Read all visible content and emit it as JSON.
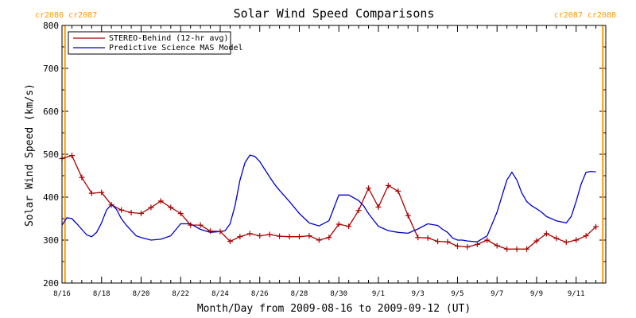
{
  "chart_data": {
    "type": "line",
    "title": "Solar Wind Speed Comparisons",
    "xlabel": "Month/Day from 2009-08-16 to 2009-09-12 (UT)",
    "ylabel": "Solar Wind Speed (km/s)",
    "ylim": [
      200,
      800
    ],
    "yticks": [
      200,
      300,
      400,
      500,
      600,
      700,
      800
    ],
    "xlim_days": [
      0,
      27.5
    ],
    "x_unit": "days from 2009-08-16",
    "xticks": [
      {
        "day": 0,
        "label": "8/16"
      },
      {
        "day": 2,
        "label": "8/18"
      },
      {
        "day": 4,
        "label": "8/20"
      },
      {
        "day": 6,
        "label": "8/22"
      },
      {
        "day": 8,
        "label": "8/24"
      },
      {
        "day": 10,
        "label": "8/26"
      },
      {
        "day": 12,
        "label": "8/28"
      },
      {
        "day": 14,
        "label": "8/30"
      },
      {
        "day": 16,
        "label": "9/1"
      },
      {
        "day": 18,
        "label": "9/3"
      },
      {
        "day": 20,
        "label": "9/5"
      },
      {
        "day": 22,
        "label": "9/7"
      },
      {
        "day": 24,
        "label": "9/9"
      },
      {
        "day": 26,
        "label": "9/11"
      }
    ],
    "legend": {
      "placement": "top-left"
    },
    "carrington_markers": [
      {
        "day": 0.15,
        "label": "cr2086 cr2087",
        "anchor": "left",
        "color": "#ff9900"
      },
      {
        "day": 27.35,
        "label": "cr2087 cr2088",
        "anchor": "right",
        "color": "#ff9900"
      }
    ],
    "series": [
      {
        "name": "STEREO-Behind (12-hr avg)",
        "color": "#aa0000",
        "marker": "plus",
        "x": [
          0.0,
          0.5,
          1.0,
          1.5,
          2.0,
          2.5,
          3.0,
          3.5,
          4.0,
          4.5,
          5.0,
          5.5,
          6.0,
          6.5,
          7.0,
          7.5,
          8.0,
          8.5,
          9.0,
          9.5,
          10.0,
          10.5,
          11.0,
          11.5,
          12.0,
          12.5,
          13.0,
          13.5,
          14.0,
          14.5,
          15.0,
          15.5,
          16.0,
          16.5,
          17.0,
          17.5,
          18.0,
          18.5,
          19.0,
          19.5,
          20.0,
          20.5,
          21.0,
          21.5,
          22.0,
          22.5,
          23.0,
          23.5,
          24.0,
          24.5,
          25.0,
          25.5,
          26.0,
          26.5,
          27.0
        ],
        "values": [
          490,
          497,
          446,
          409,
          411,
          382,
          370,
          364,
          362,
          376,
          391,
          376,
          362,
          335,
          335,
          321,
          320,
          297,
          308,
          315,
          310,
          313,
          309,
          308,
          308,
          310,
          300,
          306,
          337,
          332,
          369,
          421,
          377,
          427,
          414,
          357,
          306,
          305,
          297,
          296,
          286,
          284,
          290,
          300,
          287,
          279,
          279,
          279,
          298,
          315,
          304,
          295,
          300,
          310,
          331
        ]
      },
      {
        "name": "Predictive Science MAS Model",
        "color": "#0000cc",
        "marker": "none",
        "x": [
          0.0,
          0.25,
          0.5,
          0.75,
          1.0,
          1.25,
          1.5,
          1.75,
          2.0,
          2.25,
          2.5,
          2.75,
          3.0,
          3.25,
          3.5,
          3.75,
          4.0,
          4.5,
          5.0,
          5.5,
          6.0,
          6.5,
          7.0,
          7.5,
          8.0,
          8.25,
          8.5,
          8.75,
          9.0,
          9.25,
          9.5,
          9.75,
          10.0,
          10.25,
          10.5,
          10.75,
          11.0,
          11.5,
          12.0,
          12.5,
          13.0,
          13.5,
          14.0,
          14.5,
          15.0,
          15.25,
          15.5,
          15.75,
          16.0,
          16.5,
          17.0,
          17.5,
          18.0,
          18.5,
          19.0,
          19.25,
          19.5,
          19.75,
          20.0,
          20.25,
          20.5,
          21.0,
          21.5,
          22.0,
          22.5,
          22.75,
          23.0,
          23.25,
          23.5,
          23.75,
          24.0,
          24.25,
          24.5,
          25.0,
          25.5,
          25.75,
          26.0,
          26.25,
          26.5,
          26.75,
          27.0
        ],
        "values": [
          335,
          352,
          350,
          338,
          325,
          312,
          308,
          318,
          340,
          370,
          383,
          372,
          350,
          335,
          322,
          310,
          306,
          300,
          302,
          310,
          338,
          338,
          325,
          318,
          320,
          322,
          338,
          380,
          440,
          480,
          498,
          495,
          483,
          465,
          447,
          430,
          416,
          390,
          362,
          340,
          333,
          345,
          405,
          405,
          392,
          380,
          362,
          347,
          332,
          322,
          318,
          316,
          326,
          338,
          334,
          325,
          318,
          305,
          300,
          300,
          298,
          296,
          310,
          365,
          440,
          458,
          440,
          410,
          390,
          380,
          373,
          365,
          355,
          345,
          340,
          355,
          390,
          430,
          458,
          460,
          459
        ]
      }
    ]
  }
}
